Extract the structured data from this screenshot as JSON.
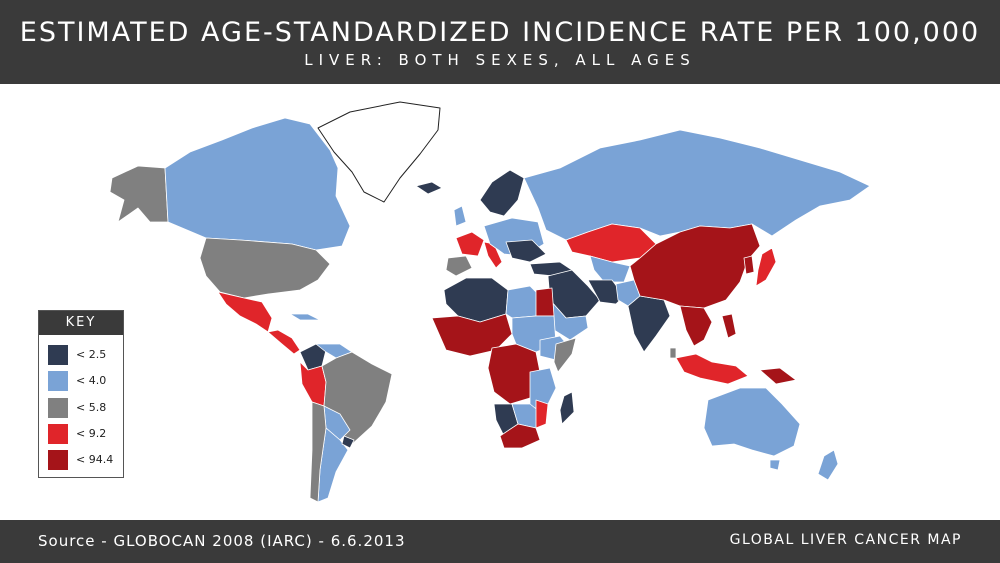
{
  "header": {
    "title": "ESTIMATED AGE-STANDARDIZED INCIDENCE RATE PER 100,000",
    "subtitle": "LIVER: BOTH SEXES, ALL AGES"
  },
  "footer": {
    "source": "Source - GLOBOCAN 2008 (IARC) - 6.6.2013",
    "map_title": "GLOBAL LIVER CANCER MAP"
  },
  "legend": {
    "title": "KEY",
    "items": [
      {
        "label": "< 2.5",
        "color": "#2f3b52"
      },
      {
        "label": "< 4.0",
        "color": "#7aa3d6"
      },
      {
        "label": "< 5.8",
        "color": "#808080"
      },
      {
        "label": "< 9.2",
        "color": "#e0252a"
      },
      {
        "label": "< 94.4",
        "color": "#a51419"
      }
    ]
  },
  "colors": {
    "header_bg": "#3a3a3a",
    "no_data": "#ffffff"
  },
  "regions": [
    {
      "name": "Alaska",
      "class": "< 5.8"
    },
    {
      "name": "Canada",
      "class": "< 4.0"
    },
    {
      "name": "Greenland",
      "class": "no data"
    },
    {
      "name": "United States",
      "class": "< 5.8"
    },
    {
      "name": "Mexico",
      "class": "< 9.2"
    },
    {
      "name": "Central America",
      "class": "< 9.2"
    },
    {
      "name": "Cuba",
      "class": "< 4.0"
    },
    {
      "name": "Colombia",
      "class": "< 2.5"
    },
    {
      "name": "Venezuela",
      "class": "< 4.0"
    },
    {
      "name": "Peru",
      "class": "< 9.2"
    },
    {
      "name": "Brazil",
      "class": "< 5.8"
    },
    {
      "name": "Argentina",
      "class": "< 4.0"
    },
    {
      "name": "Chile",
      "class": "< 5.8"
    },
    {
      "name": "Iceland",
      "class": "< 2.5"
    },
    {
      "name": "Scandinavia",
      "class": "< 2.5"
    },
    {
      "name": "France",
      "class": "< 9.2"
    },
    {
      "name": "Spain",
      "class": "< 5.8"
    },
    {
      "name": "Italy",
      "class": "< 9.2"
    },
    {
      "name": "Europe (Central/East)",
      "class": "< 4.0"
    },
    {
      "name": "Russia",
      "class": "< 4.0"
    },
    {
      "name": "Kazakhstan",
      "class": "< 9.2"
    },
    {
      "name": "Middle East",
      "class": "< 2.5"
    },
    {
      "name": "Iran",
      "class": "< 2.5"
    },
    {
      "name": "India",
      "class": "< 2.5"
    },
    {
      "name": "Mongolia & China",
      "class": "< 94.4"
    },
    {
      "name": "Japan",
      "class": "< 9.2"
    },
    {
      "name": "Korea",
      "class": "< 94.4"
    },
    {
      "name": "Southeast Asia",
      "class": "< 94.4"
    },
    {
      "name": "Indonesia",
      "class": "< 9.2"
    },
    {
      "name": "Philippines",
      "class": "< 94.4"
    },
    {
      "name": "Papua New Guinea",
      "class": "< 94.4"
    },
    {
      "name": "Australia",
      "class": "< 4.0"
    },
    {
      "name": "New Zealand",
      "class": "< 4.0"
    },
    {
      "name": "North Africa (Algeria)",
      "class": "< 2.5"
    },
    {
      "name": "Libya",
      "class": "< 4.0"
    },
    {
      "name": "Egypt",
      "class": "< 94.4"
    },
    {
      "name": "West Africa",
      "class": "< 94.4"
    },
    {
      "name": "Central Africa",
      "class": "< 94.4"
    },
    {
      "name": "East Africa",
      "class": "< 4.0"
    },
    {
      "name": "Somalia",
      "class": "< 5.8"
    },
    {
      "name": "Madagascar",
      "class": "< 2.5"
    },
    {
      "name": "Namibia",
      "class": "< 2.5"
    },
    {
      "name": "South Africa",
      "class": "< 94.4"
    }
  ]
}
